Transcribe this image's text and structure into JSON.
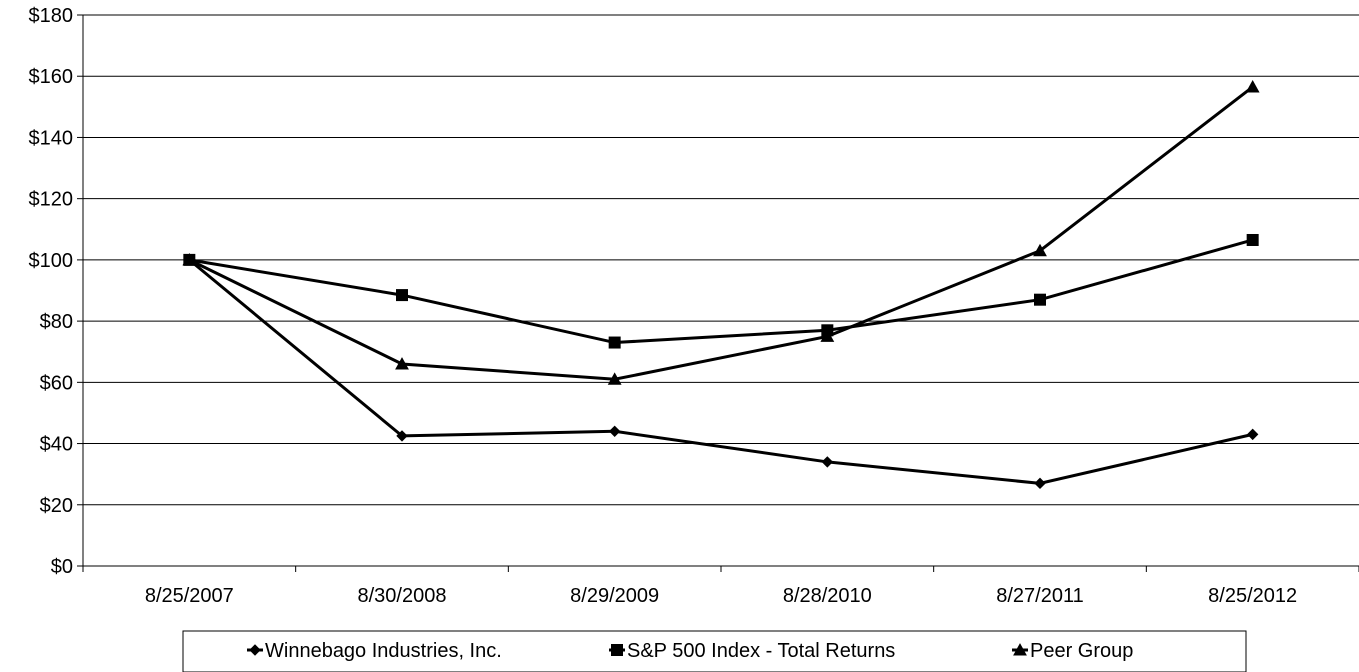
{
  "chart_data": {
    "type": "line",
    "title": "",
    "xlabel": "",
    "ylabel": "",
    "categories": [
      "8/25/2007",
      "8/30/2008",
      "8/29/2009",
      "8/28/2010",
      "8/27/2011",
      "8/25/2012"
    ],
    "ylim": [
      0,
      180
    ],
    "yticks": [
      "$0",
      "$20",
      "$40",
      "$60",
      "$80",
      "$100",
      "$120",
      "$140",
      "$160",
      "$180"
    ],
    "ytick_values": [
      0,
      20,
      40,
      60,
      80,
      100,
      120,
      140,
      160,
      180
    ],
    "grid": "horizontal",
    "legend_position": "bottom",
    "series": [
      {
        "name": "Winnebago Industries, Inc.",
        "marker": "diamond",
        "color": "#000000",
        "values": [
          100,
          42.5,
          44,
          34,
          27,
          43
        ]
      },
      {
        "name": "S&P 500 Index - Total Returns",
        "marker": "square",
        "color": "#000000",
        "values": [
          100,
          88.5,
          73,
          77,
          87,
          106.5
        ]
      },
      {
        "name": "Peer Group",
        "marker": "triangle",
        "color": "#000000",
        "values": [
          100,
          66,
          61,
          75,
          103,
          156.5
        ]
      }
    ]
  }
}
